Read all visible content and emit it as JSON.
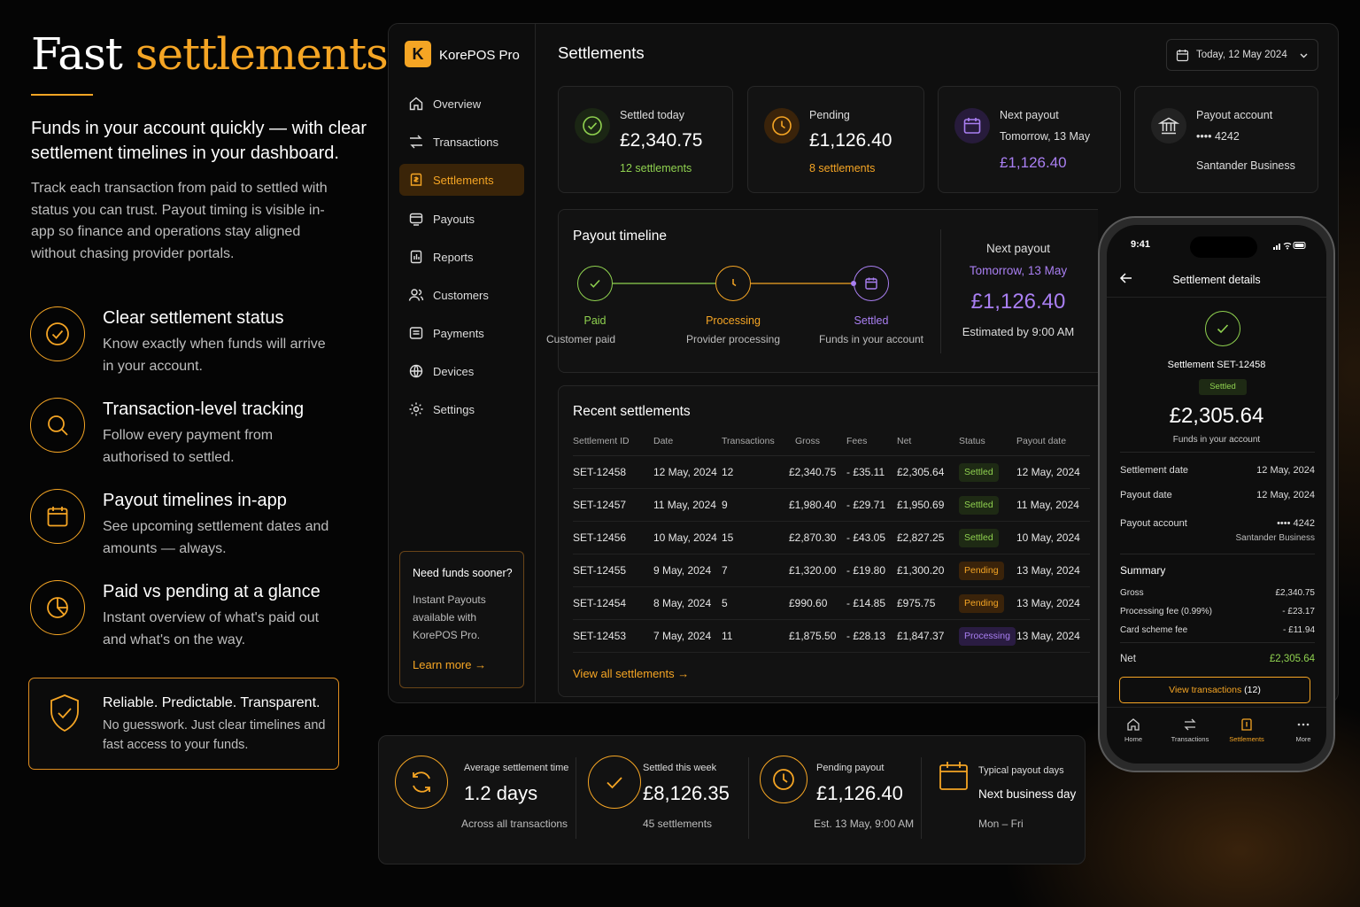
{
  "hero": {
    "title_plain": "Fast",
    "title_accent": "settlements",
    "subtitle": "Funds in your account quickly — with clear settlement timelines in your dashboard.",
    "description": "Track each transaction from paid to settled with status you can trust. Payout timing is visible in-app so finance and operations stay aligned without chasing provider portals."
  },
  "features": [
    {
      "icon": "check-circle-icon",
      "title": "Clear settlement status",
      "desc": "Know exactly when funds will arrive in your account."
    },
    {
      "icon": "search-icon",
      "title": "Transaction-level tracking",
      "desc": "Follow every payment from authorised to settled."
    },
    {
      "icon": "calendar-icon",
      "title": "Payout timelines in-app",
      "desc": "See upcoming settlement dates and amounts — always."
    },
    {
      "icon": "pie-chart-icon",
      "title": "Paid vs pending at a glance",
      "desc": "Instant overview of what's paid out and what's on the way."
    }
  ],
  "trust": {
    "title": "Reliable. Predictable. Transparent.",
    "desc": "No guesswork. Just clear timelines and fast access to your funds."
  },
  "app": {
    "logo_letter": "K",
    "name": "KorePOS Pro",
    "page_title": "Settlements",
    "date_filter": "Today, 12 May 2024",
    "nav": [
      {
        "label": "Overview",
        "icon": "home-icon"
      },
      {
        "label": "Transactions",
        "icon": "transfer-icon"
      },
      {
        "label": "Settlements",
        "icon": "settlement-icon",
        "active": true
      },
      {
        "label": "Payouts",
        "icon": "payout-icon"
      },
      {
        "label": "Reports",
        "icon": "report-icon"
      },
      {
        "label": "Customers",
        "icon": "users-icon"
      },
      {
        "label": "Payments",
        "icon": "payments-icon"
      },
      {
        "label": "Devices",
        "icon": "devices-icon"
      },
      {
        "label": "Settings",
        "icon": "gear-icon"
      }
    ],
    "promo": {
      "title": "Need funds sooner?",
      "desc": "Instant Payouts available with KorePOS Pro.",
      "link": "Learn more"
    }
  },
  "summary_cards": [
    {
      "label": "Settled today",
      "value": "£2,340.75",
      "sub": "12 settlements",
      "color": "#8fd14f"
    },
    {
      "label": "Pending",
      "value": "£1,126.40",
      "sub": "8 settlements",
      "color": "#f5a524"
    },
    {
      "label": "Next payout",
      "value": "Tomorrow, 13 May",
      "sub": "£1,126.40",
      "color": "#a97ff2"
    },
    {
      "label": "Payout account",
      "value": "•••• 4242",
      "sub": "Santander Business",
      "color": "#dddddd"
    }
  ],
  "timeline": {
    "title": "Payout timeline",
    "steps": [
      {
        "name": "Paid",
        "sub": "Customer paid",
        "color": "#8fd14f"
      },
      {
        "name": "Processing",
        "sub": "Provider processing",
        "color": "#f5a524"
      },
      {
        "name": "Settled",
        "sub": "Funds in your account",
        "color": "#a97ff2"
      }
    ],
    "next_label": "Next payout",
    "next_date": "Tomorrow, 13 May",
    "next_amount": "£1,126.40",
    "next_est": "Estimated by 9:00 AM"
  },
  "recent": {
    "title": "Recent settlements",
    "columns": [
      "Settlement ID",
      "Date",
      "Transactions",
      "Gross",
      "Fees",
      "Net",
      "Status",
      "Payout date"
    ],
    "rows": [
      [
        "SET-12458",
        "12 May, 2024",
        "12",
        "£2,340.75",
        "- £35.11",
        "£2,305.64",
        "Settled",
        "12 May, 2024"
      ],
      [
        "SET-12457",
        "11 May, 2024",
        "9",
        "£1,980.40",
        "- £29.71",
        "£1,950.69",
        "Settled",
        "11 May, 2024"
      ],
      [
        "SET-12456",
        "10 May, 2024",
        "15",
        "£2,870.30",
        "- £43.05",
        "£2,827.25",
        "Settled",
        "10 May, 2024"
      ],
      [
        "SET-12455",
        "9 May, 2024",
        "7",
        "£1,320.00",
        "- £19.80",
        "£1,300.20",
        "Pending",
        "13 May, 2024"
      ],
      [
        "SET-12454",
        "8 May, 2024",
        "5",
        "£990.60",
        "- £14.85",
        "£975.75",
        "Pending",
        "13 May, 2024"
      ],
      [
        "SET-12453",
        "7 May, 2024",
        "11",
        "£1,875.50",
        "- £28.13",
        "£1,847.37",
        "Processing",
        "13 May, 2024"
      ]
    ],
    "view_all": "View all settlements"
  },
  "stats": [
    {
      "label": "Average settlement time",
      "value": "1.2 days",
      "foot": "Across all transactions",
      "icon": "refresh-icon"
    },
    {
      "label": "Settled this week",
      "value": "£8,126.35",
      "foot": "45 settlements",
      "icon": "check-icon"
    },
    {
      "label": "Pending payout",
      "value": "£1,126.40",
      "foot": "Est. 13 May, 9:00 AM",
      "icon": "clock-icon"
    },
    {
      "label": "Typical payout days",
      "value": "Next business day",
      "foot": "Mon – Fri",
      "icon": "calendar-icon"
    }
  ],
  "phone": {
    "time": "9:41",
    "title": "Settlement details",
    "settlement_id": "Settlement SET-12458",
    "status": "Settled",
    "amount": "£2,305.64",
    "amount_sub": "Funds in your account",
    "details": [
      {
        "label": "Settlement date",
        "value": "12 May, 2024"
      },
      {
        "label": "Payout date",
        "value": "12 May, 2024"
      },
      {
        "label": "Payout account",
        "value": "•••• 4242",
        "sub": "Santander Business"
      }
    ],
    "summary_title": "Summary",
    "summary": [
      {
        "label": "Gross",
        "value": "£2,340.75"
      },
      {
        "label": "Processing fee (0.99%)",
        "value": "- £23.17"
      },
      {
        "label": "Card scheme fee",
        "value": "- £11.94"
      }
    ],
    "net_label": "Net",
    "net_value": "£2,305.64",
    "button_label": "View transactions",
    "button_count": "(12)",
    "tabs": [
      {
        "label": "Home",
        "icon": "home-icon"
      },
      {
        "label": "Transactions",
        "icon": "transfer-icon"
      },
      {
        "label": "Settlements",
        "icon": "settlement-icon",
        "active": true
      },
      {
        "label": "More",
        "icon": "more-icon"
      }
    ]
  }
}
